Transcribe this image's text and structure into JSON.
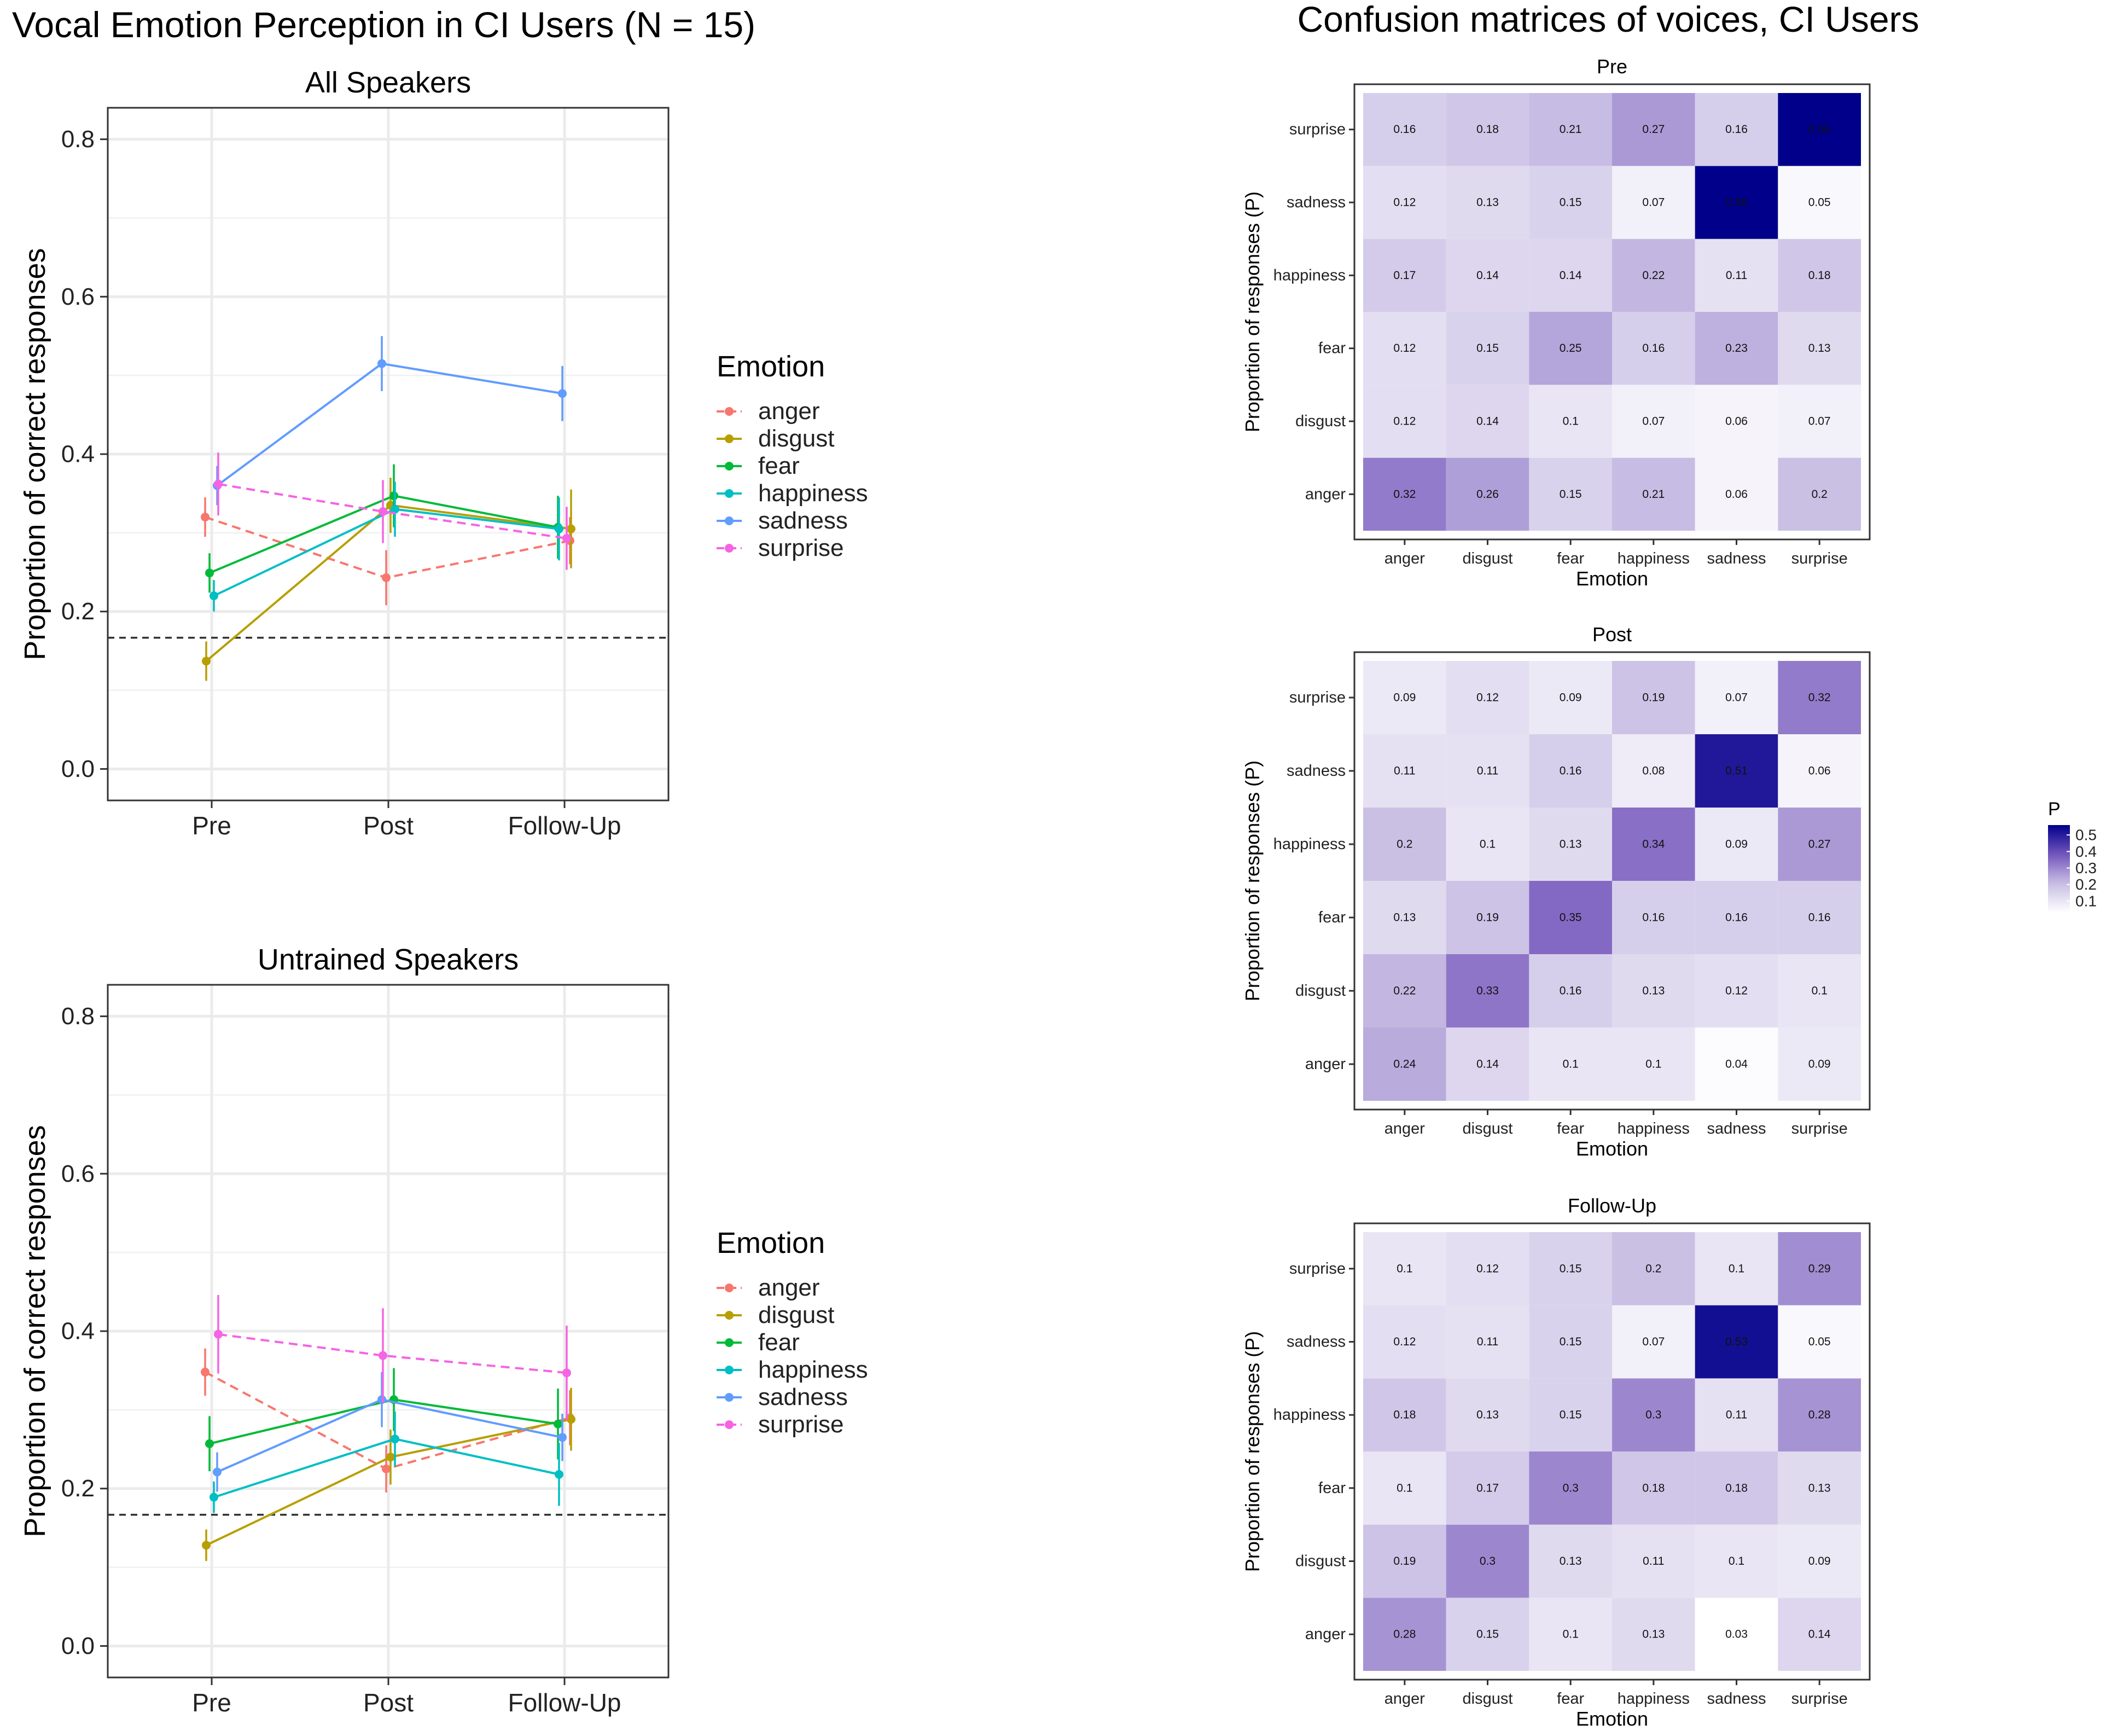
{
  "colors": {
    "anger": "#F8766D",
    "disgust": "#B79F00",
    "fear": "#00BA38",
    "happiness": "#00BFC4",
    "sadness": "#619CFF",
    "surprise": "#F564E3",
    "heat_low": "#ffffff",
    "heat_high": "#00008B"
  },
  "chart_data": [
    {
      "type": "line",
      "figure_title": "Vocal Emotion Perception in CI Users (N = 15)",
      "title": "All Speakers",
      "xlabel": "",
      "ylabel": "Proportion of correct responses",
      "categories": [
        "Pre",
        "Post",
        "Follow-Up"
      ],
      "ylim": [
        -0.04,
        0.84
      ],
      "yticks": [
        "0.0",
        "0.2",
        "0.4",
        "0.6",
        "0.8"
      ],
      "yticks_values": [
        0,
        0.2,
        0.4,
        0.6,
        0.8
      ],
      "chance_level": 0.1667,
      "legend_title": "Emotion",
      "series": [
        {
          "name": "anger",
          "values": [
            0.32,
            0.243,
            0.29
          ],
          "err": [
            0.025,
            0.035,
            0.03
          ],
          "dashed": true
        },
        {
          "name": "disgust",
          "values": [
            0.137,
            0.335,
            0.305
          ],
          "err": [
            0.025,
            0.035,
            0.05
          ],
          "dashed": false
        },
        {
          "name": "fear",
          "values": [
            0.249,
            0.347,
            0.307
          ],
          "err": [
            0.025,
            0.04,
            0.04
          ],
          "dashed": false
        },
        {
          "name": "happiness",
          "values": [
            0.22,
            0.33,
            0.305
          ],
          "err": [
            0.02,
            0.035,
            0.04
          ],
          "dashed": false
        },
        {
          "name": "sadness",
          "values": [
            0.36,
            0.515,
            0.477
          ],
          "err": [
            0.025,
            0.035,
            0.035
          ],
          "dashed": false
        },
        {
          "name": "surprise",
          "values": [
            0.362,
            0.327,
            0.293
          ],
          "err": [
            0.04,
            0.04,
            0.04
          ],
          "dashed": true
        }
      ]
    },
    {
      "type": "line",
      "title": "Untrained Speakers",
      "xlabel": "",
      "ylabel": "Proportion of correct responses",
      "categories": [
        "Pre",
        "Post",
        "Follow-Up"
      ],
      "ylim": [
        -0.04,
        0.84
      ],
      "yticks": [
        "0.0",
        "0.2",
        "0.4",
        "0.6",
        "0.8"
      ],
      "yticks_values": [
        0,
        0.2,
        0.4,
        0.6,
        0.8
      ],
      "chance_level": 0.1667,
      "legend_title": "Emotion",
      "series": [
        {
          "name": "anger",
          "values": [
            0.348,
            0.225,
            0.29
          ],
          "err": [
            0.03,
            0.03,
            0.035
          ],
          "dashed": true
        },
        {
          "name": "disgust",
          "values": [
            0.128,
            0.24,
            0.288
          ],
          "err": [
            0.02,
            0.035,
            0.04
          ],
          "dashed": false
        },
        {
          "name": "fear",
          "values": [
            0.257,
            0.313,
            0.282
          ],
          "err": [
            0.035,
            0.04,
            0.045
          ],
          "dashed": false
        },
        {
          "name": "happiness",
          "values": [
            0.189,
            0.263,
            0.218
          ],
          "err": [
            0.02,
            0.035,
            0.04
          ],
          "dashed": false
        },
        {
          "name": "sadness",
          "values": [
            0.221,
            0.313,
            0.265
          ],
          "err": [
            0.025,
            0.035,
            0.03
          ],
          "dashed": false
        },
        {
          "name": "surprise",
          "values": [
            0.396,
            0.369,
            0.347
          ],
          "err": [
            0.05,
            0.06,
            0.06
          ],
          "dashed": true
        }
      ]
    },
    {
      "type": "heatmap",
      "figure_title": "Confusion matrices of voices, CI Users",
      "title": "Pre",
      "xlabel": "Emotion",
      "ylabel": "Proportion of responses (P)",
      "x": [
        "anger",
        "disgust",
        "fear",
        "happiness",
        "sadness",
        "surprise"
      ],
      "y": [
        "anger",
        "disgust",
        "fear",
        "happiness",
        "sadness",
        "surprise"
      ],
      "matrix": [
        [
          0.32,
          0.26,
          0.15,
          0.21,
          0.06,
          0.2
        ],
        [
          0.12,
          0.14,
          0.1,
          0.07,
          0.06,
          0.07
        ],
        [
          0.12,
          0.15,
          0.25,
          0.16,
          0.23,
          0.13
        ],
        [
          0.17,
          0.14,
          0.14,
          0.22,
          0.11,
          0.18
        ],
        [
          0.12,
          0.13,
          0.15,
          0.07,
          0.56,
          0.05
        ],
        [
          0.16,
          0.18,
          0.21,
          0.27,
          0.16,
          0.56
        ]
      ],
      "labels": [
        [
          "0.32",
          "0.26",
          "0.15",
          "0.21",
          "0.06",
          "0.2"
        ],
        [
          "0.12",
          "0.14",
          "0.1",
          "0.07",
          "0.06",
          "0.07"
        ],
        [
          "0.12",
          "0.15",
          "0.25",
          "0.16",
          "0.23",
          "0.13"
        ],
        [
          "0.17",
          "0.14",
          "0.14",
          "0.22",
          "0.11",
          "0.18"
        ],
        [
          "0.12",
          "0.13",
          "0.15",
          "0.07",
          "0.56",
          "0.05"
        ],
        [
          "0.16",
          "0.18",
          "0.21",
          "0.27",
          "0.16",
          "0.56"
        ]
      ]
    },
    {
      "type": "heatmap",
      "title": "Post",
      "xlabel": "Emotion",
      "ylabel": "Proportion of responses (P)",
      "x": [
        "anger",
        "disgust",
        "fear",
        "happiness",
        "sadness",
        "surprise"
      ],
      "y": [
        "anger",
        "disgust",
        "fear",
        "happiness",
        "sadness",
        "surprise"
      ],
      "matrix": [
        [
          0.24,
          0.14,
          0.1,
          0.1,
          0.04,
          0.09
        ],
        [
          0.22,
          0.33,
          0.16,
          0.13,
          0.12,
          0.1
        ],
        [
          0.13,
          0.19,
          0.35,
          0.16,
          0.16,
          0.16
        ],
        [
          0.2,
          0.1,
          0.13,
          0.34,
          0.09,
          0.27
        ],
        [
          0.11,
          0.11,
          0.16,
          0.08,
          0.51,
          0.06
        ],
        [
          0.09,
          0.12,
          0.09,
          0.19,
          0.07,
          0.32
        ]
      ],
      "labels": [
        [
          "0.24",
          "0.14",
          "0.1",
          "0.1",
          "0.04",
          "0.09"
        ],
        [
          "0.22",
          "0.33",
          "0.16",
          "0.13",
          "0.12",
          "0.1"
        ],
        [
          "0.13",
          "0.19",
          "0.35",
          "0.16",
          "0.16",
          "0.16"
        ],
        [
          "0.2",
          "0.1",
          "0.13",
          "0.34",
          "0.09",
          "0.27"
        ],
        [
          "0.11",
          "0.11",
          "0.16",
          "0.08",
          "0.51",
          "0.06"
        ],
        [
          "0.09",
          "0.12",
          "0.09",
          "0.19",
          "0.07",
          "0.32"
        ]
      ]
    },
    {
      "type": "heatmap",
      "title": "Follow-Up",
      "xlabel": "Emotion",
      "ylabel": "Proportion of responses (P)",
      "x": [
        "anger",
        "disgust",
        "fear",
        "happiness",
        "sadness",
        "surprise"
      ],
      "y": [
        "anger",
        "disgust",
        "fear",
        "happiness",
        "sadness",
        "surprise"
      ],
      "matrix": [
        [
          0.28,
          0.15,
          0.1,
          0.13,
          0.03,
          0.14
        ],
        [
          0.19,
          0.3,
          0.13,
          0.11,
          0.1,
          0.09
        ],
        [
          0.1,
          0.17,
          0.3,
          0.18,
          0.18,
          0.13
        ],
        [
          0.18,
          0.13,
          0.15,
          0.3,
          0.11,
          0.28
        ],
        [
          0.12,
          0.11,
          0.15,
          0.07,
          0.53,
          0.05
        ],
        [
          0.1,
          0.12,
          0.15,
          0.2,
          0.1,
          0.29
        ]
      ],
      "labels": [
        [
          "0.28",
          "0.15",
          "0.1",
          "0.13",
          "0.03",
          "0.14"
        ],
        [
          "0.19",
          "0.3",
          "0.13",
          "0.11",
          "0.1",
          "0.09"
        ],
        [
          "0.1",
          "0.17",
          "0.3",
          "0.18",
          "0.18",
          "0.13"
        ],
        [
          "0.18",
          "0.13",
          "0.15",
          "0.3",
          "0.11",
          "0.28"
        ],
        [
          "0.12",
          "0.11",
          "0.15",
          "0.07",
          "0.53",
          "0.05"
        ],
        [
          "0.1",
          "0.12",
          "0.15",
          "0.2",
          "0.1",
          "0.29"
        ]
      ]
    }
  ],
  "colorbar": {
    "title": "P",
    "range": [
      0.03,
      0.56
    ],
    "ticks": [
      "0.5",
      "0.4",
      "0.3",
      "0.2",
      "0.1"
    ],
    "tick_values": [
      0.5,
      0.4,
      0.3,
      0.2,
      0.1
    ]
  }
}
